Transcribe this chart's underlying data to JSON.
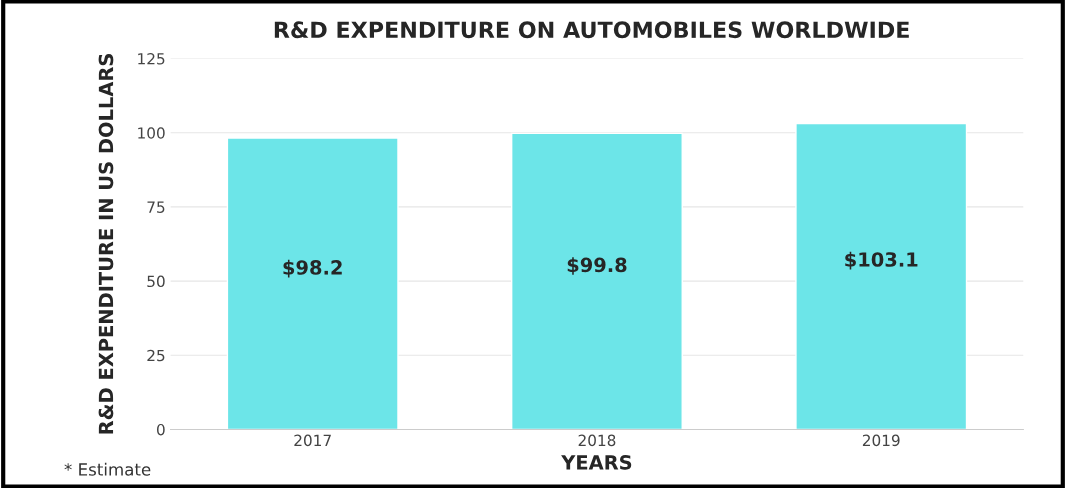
{
  "chart_data": {
    "type": "bar",
    "title": "R&D EXPENDITURE ON AUTOMOBILES WORLDWIDE",
    "xlabel": "YEARS",
    "ylabel": "R&D EXPENDITURE IN US DOLLARS",
    "categories": [
      "2017",
      "2018",
      "2019"
    ],
    "values": [
      98.2,
      99.8,
      103.1
    ],
    "value_labels": [
      "$98.2",
      "$99.8",
      "$103.1"
    ],
    "color": "#6ce5e8",
    "ylim": [
      0,
      125
    ],
    "yticks": [
      0,
      25,
      50,
      75,
      100,
      125
    ],
    "grid": "y",
    "annotations": [
      "* Estimate"
    ]
  }
}
